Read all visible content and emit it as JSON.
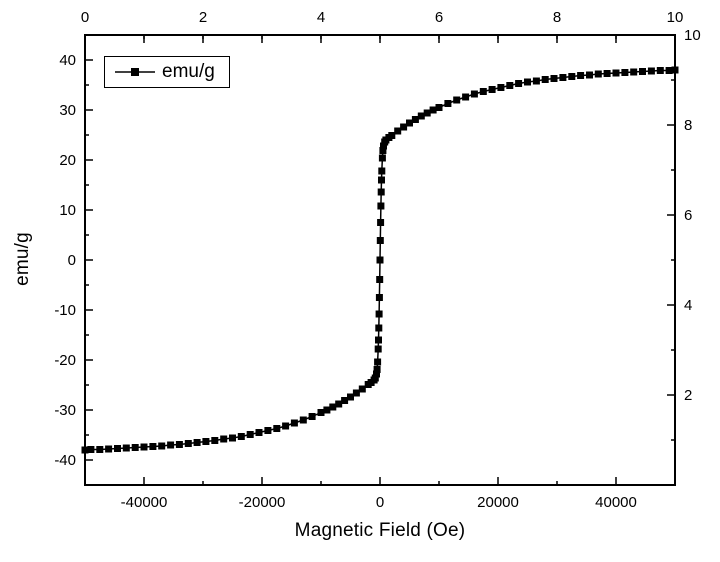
{
  "figure": {
    "background": "#ffffff",
    "frame_color": "#000000",
    "series_color": "#000000"
  },
  "legend": {
    "label": "emu/g",
    "marker": "filled-square-with-line"
  },
  "chart_data": {
    "type": "line",
    "title": "",
    "xlabel": "Magnetic Field (Oe)",
    "ylabel": "emu/g",
    "xlim": [
      -50000,
      50000
    ],
    "ylim": [
      -45,
      45
    ],
    "grid": false,
    "legend_position": "top-left",
    "x_ticks": [
      -40000,
      -20000,
      0,
      20000,
      40000
    ],
    "x_tick_labels": [
      "-40000",
      "-20000",
      "0",
      "20000",
      "40000"
    ],
    "x_minor_ticks": [
      -30000,
      -10000,
      10000,
      30000
    ],
    "y_ticks": [
      40,
      30,
      20,
      10,
      0,
      -10,
      -20,
      -30,
      -40
    ],
    "y_tick_labels": [
      "40",
      "30",
      "20",
      "10",
      "0",
      "-10",
      "-20",
      "-30",
      "-40"
    ],
    "y_minor_ticks": [
      -35,
      -25,
      -15,
      -5,
      5,
      15,
      25,
      35
    ],
    "top_axis": {
      "lim": [
        0,
        10
      ],
      "ticks": [
        0,
        2,
        4,
        6,
        8,
        10
      ],
      "tick_labels": [
        "0",
        "2",
        "4",
        "6",
        "8",
        "10"
      ],
      "minor_ticks": [
        1,
        3,
        5,
        7,
        9
      ]
    },
    "right_axis": {
      "lim": [
        0,
        10
      ],
      "ticks": [
        2,
        4,
        6,
        8,
        10
      ],
      "tick_labels": [
        "2",
        "4",
        "6",
        "8",
        "10"
      ],
      "minor_ticks": [
        1,
        3,
        5,
        7,
        9
      ]
    },
    "series": [
      {
        "name": "emu/g",
        "marker": "square",
        "marker_size": 7,
        "color": "#000000",
        "x": [
          -50000,
          -49000,
          -47500,
          -46000,
          -44500,
          -43000,
          -41500,
          -40000,
          -38500,
          -37000,
          -35500,
          -34000,
          -32500,
          -31000,
          -29500,
          -28000,
          -26500,
          -25000,
          -23500,
          -22000,
          -20500,
          -19000,
          -17500,
          -16000,
          -14500,
          -13000,
          -11500,
          -10000,
          -9000,
          -8000,
          -7000,
          -6000,
          -5000,
          -4000,
          -3000,
          -2000,
          -1500,
          -1000,
          -800,
          -600,
          -500,
          -400,
          -300,
          -250,
          -200,
          -150,
          -100,
          -50,
          0,
          50,
          100,
          150,
          200,
          250,
          300,
          400,
          500,
          600,
          800,
          1000,
          1500,
          2000,
          3000,
          4000,
          5000,
          6000,
          7000,
          8000,
          9000,
          10000,
          11500,
          13000,
          14500,
          16000,
          17500,
          19000,
          20500,
          22000,
          23500,
          25000,
          26500,
          28000,
          29500,
          31000,
          32500,
          34000,
          35500,
          37000,
          38500,
          40000,
          41500,
          43000,
          44500,
          46000,
          47500,
          49000,
          50000
        ],
        "y": [
          -38,
          -37.9,
          -37.9,
          -37.8,
          -37.7,
          -37.6,
          -37.5,
          -37.4,
          -37.3,
          -37.2,
          -37,
          -36.9,
          -36.7,
          -36.5,
          -36.3,
          -36.1,
          -35.8,
          -35.6,
          -35.3,
          -34.9,
          -34.5,
          -34.1,
          -33.7,
          -33.2,
          -32.6,
          -32,
          -31.3,
          -30.5,
          -30,
          -29.4,
          -28.8,
          -28.1,
          -27.4,
          -26.6,
          -25.8,
          -24.9,
          -24.5,
          -24,
          -23.6,
          -22.8,
          -21.9,
          -20.4,
          -17.8,
          -16,
          -13.6,
          -10.8,
          -7.5,
          -3.9,
          0,
          3.9,
          7.5,
          10.8,
          13.6,
          16,
          17.8,
          20.4,
          21.9,
          22.8,
          23.6,
          24,
          24.5,
          24.9,
          25.8,
          26.6,
          27.4,
          28.1,
          28.8,
          29.4,
          30,
          30.5,
          31.3,
          32,
          32.6,
          33.2,
          33.7,
          34.1,
          34.5,
          34.9,
          35.3,
          35.6,
          35.8,
          36.1,
          36.3,
          36.5,
          36.7,
          36.9,
          37,
          37.2,
          37.3,
          37.4,
          37.5,
          37.6,
          37.7,
          37.8,
          37.9,
          37.9,
          38
        ]
      }
    ]
  }
}
